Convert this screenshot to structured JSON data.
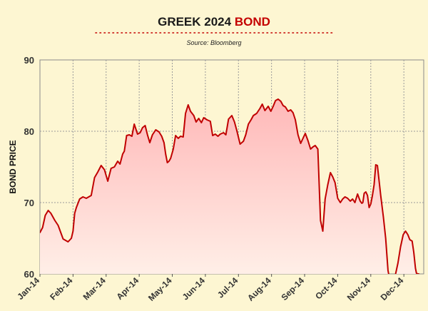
{
  "chart_data": {
    "type": "area",
    "title_parts": [
      "GREEK 2024 ",
      "BOND"
    ],
    "title": "GREEK 2024 BOND",
    "subtitle": "Source: Bloomberg",
    "xlabel": "",
    "ylabel": "BOND PRICE",
    "ylim": [
      60,
      90
    ],
    "yticks": [
      "60",
      "70",
      "80",
      "90"
    ],
    "xticks": [
      "Jan-14",
      "Feb-14",
      "Mar-14",
      "Apr-14",
      "May-14",
      "Jun-14",
      "Jul-14",
      "Aug-14",
      "Sep-14",
      "Oct-14",
      "Nov-14",
      "Dec-14"
    ],
    "grid": true,
    "colors": {
      "line": "#c00000",
      "fill_top": "#ffb8b8",
      "fill_bottom": "#fff2ea",
      "accent": "#c40000",
      "grid": "#9a9a9a",
      "background": "#fdf6d2"
    },
    "series": [
      {
        "x": [
          0,
          0.08,
          0.16,
          0.25,
          0.33,
          0.45,
          0.55,
          0.7,
          0.85,
          0.95,
          1.0,
          1.05,
          1.1,
          1.2,
          1.3,
          1.4,
          1.55,
          1.65,
          1.75,
          1.85,
          1.95,
          2.05,
          2.15,
          2.25,
          2.35,
          2.42,
          2.5,
          2.55,
          2.62,
          2.7,
          2.78,
          2.85,
          2.95,
          3.03,
          3.1,
          3.18,
          3.25,
          3.32,
          3.4,
          3.5,
          3.6,
          3.68,
          3.75,
          3.8,
          3.85,
          3.9,
          3.95,
          4.03,
          4.1,
          4.18,
          4.25,
          4.33,
          4.4,
          4.48,
          4.55,
          4.65,
          4.72,
          4.8,
          4.88,
          4.95,
          5.05,
          5.15,
          5.22,
          5.3,
          5.38,
          5.45,
          5.55,
          5.62,
          5.7,
          5.8,
          5.88,
          5.95,
          6.05,
          6.15,
          6.22,
          6.3,
          6.38,
          6.45,
          6.55,
          6.65,
          6.72,
          6.8,
          6.9,
          6.98,
          7.05,
          7.12,
          7.2,
          7.28,
          7.35,
          7.42,
          7.5,
          7.58,
          7.65,
          7.72,
          7.8,
          7.88,
          7.95,
          8.02,
          8.1,
          8.18,
          8.25,
          8.32,
          8.4,
          8.48,
          8.55,
          8.62,
          8.7,
          8.78,
          8.85,
          8.92,
          9.0,
          9.08,
          9.15,
          9.22,
          9.3,
          9.38,
          9.45,
          9.52,
          9.6,
          9.68,
          9.73,
          9.76,
          9.8,
          9.85,
          9.9,
          9.95,
          10.0,
          10.05,
          10.1,
          10.15,
          10.2,
          10.3,
          10.38,
          10.45,
          10.52,
          10.6,
          10.68,
          10.75,
          10.82,
          10.9,
          10.98,
          11.05,
          11.12,
          11.18,
          11.25,
          11.3,
          11.35,
          11.38,
          11.42,
          11.45
        ],
        "values": [
          65.8,
          66.5,
          68.2,
          68.9,
          68.5,
          67.5,
          66.8,
          64.9,
          64.5,
          65.0,
          66.0,
          68.5,
          69.3,
          70.5,
          70.8,
          70.6,
          71.0,
          73.5,
          74.3,
          75.2,
          74.6,
          73.0,
          74.8,
          75.0,
          75.8,
          75.4,
          76.8,
          77.2,
          79.4,
          79.5,
          79.3,
          81.0,
          79.6,
          79.8,
          80.5,
          80.8,
          79.5,
          78.4,
          79.5,
          80.2,
          79.9,
          79.3,
          78.4,
          76.8,
          75.6,
          75.8,
          76.2,
          77.5,
          79.4,
          79.0,
          79.3,
          79.2,
          82.5,
          83.7,
          82.8,
          82.2,
          81.3,
          81.8,
          81.2,
          81.9,
          81.6,
          81.4,
          79.4,
          79.6,
          79.3,
          79.6,
          79.8,
          79.5,
          81.7,
          82.2,
          81.3,
          80.1,
          78.2,
          78.6,
          79.5,
          81.0,
          81.6,
          82.2,
          82.5,
          83.2,
          83.8,
          82.9,
          83.5,
          82.8,
          83.5,
          84.3,
          84.5,
          84.2,
          83.6,
          83.4,
          82.8,
          83.0,
          82.6,
          81.6,
          79.5,
          78.3,
          79.0,
          79.7,
          78.7,
          77.5,
          77.8,
          78.0,
          77.5,
          67.5,
          66.0,
          70.5,
          72.5,
          74.2,
          73.6,
          72.8,
          70.6,
          70.0,
          70.5,
          70.8,
          70.6,
          70.2,
          70.5,
          70.0,
          71.2,
          70.2,
          69.9,
          70.0,
          71.3,
          71.5,
          71.0,
          69.3,
          69.8,
          71.0,
          72.5,
          75.3,
          75.2,
          71.0,
          68.0,
          65.0,
          60.5,
          58.5,
          59.0,
          60.0,
          61.5,
          63.8,
          65.5,
          66.0,
          65.5,
          64.8,
          64.6,
          63.0,
          60.8,
          60.1,
          60.0,
          60.0
        ]
      }
    ]
  }
}
